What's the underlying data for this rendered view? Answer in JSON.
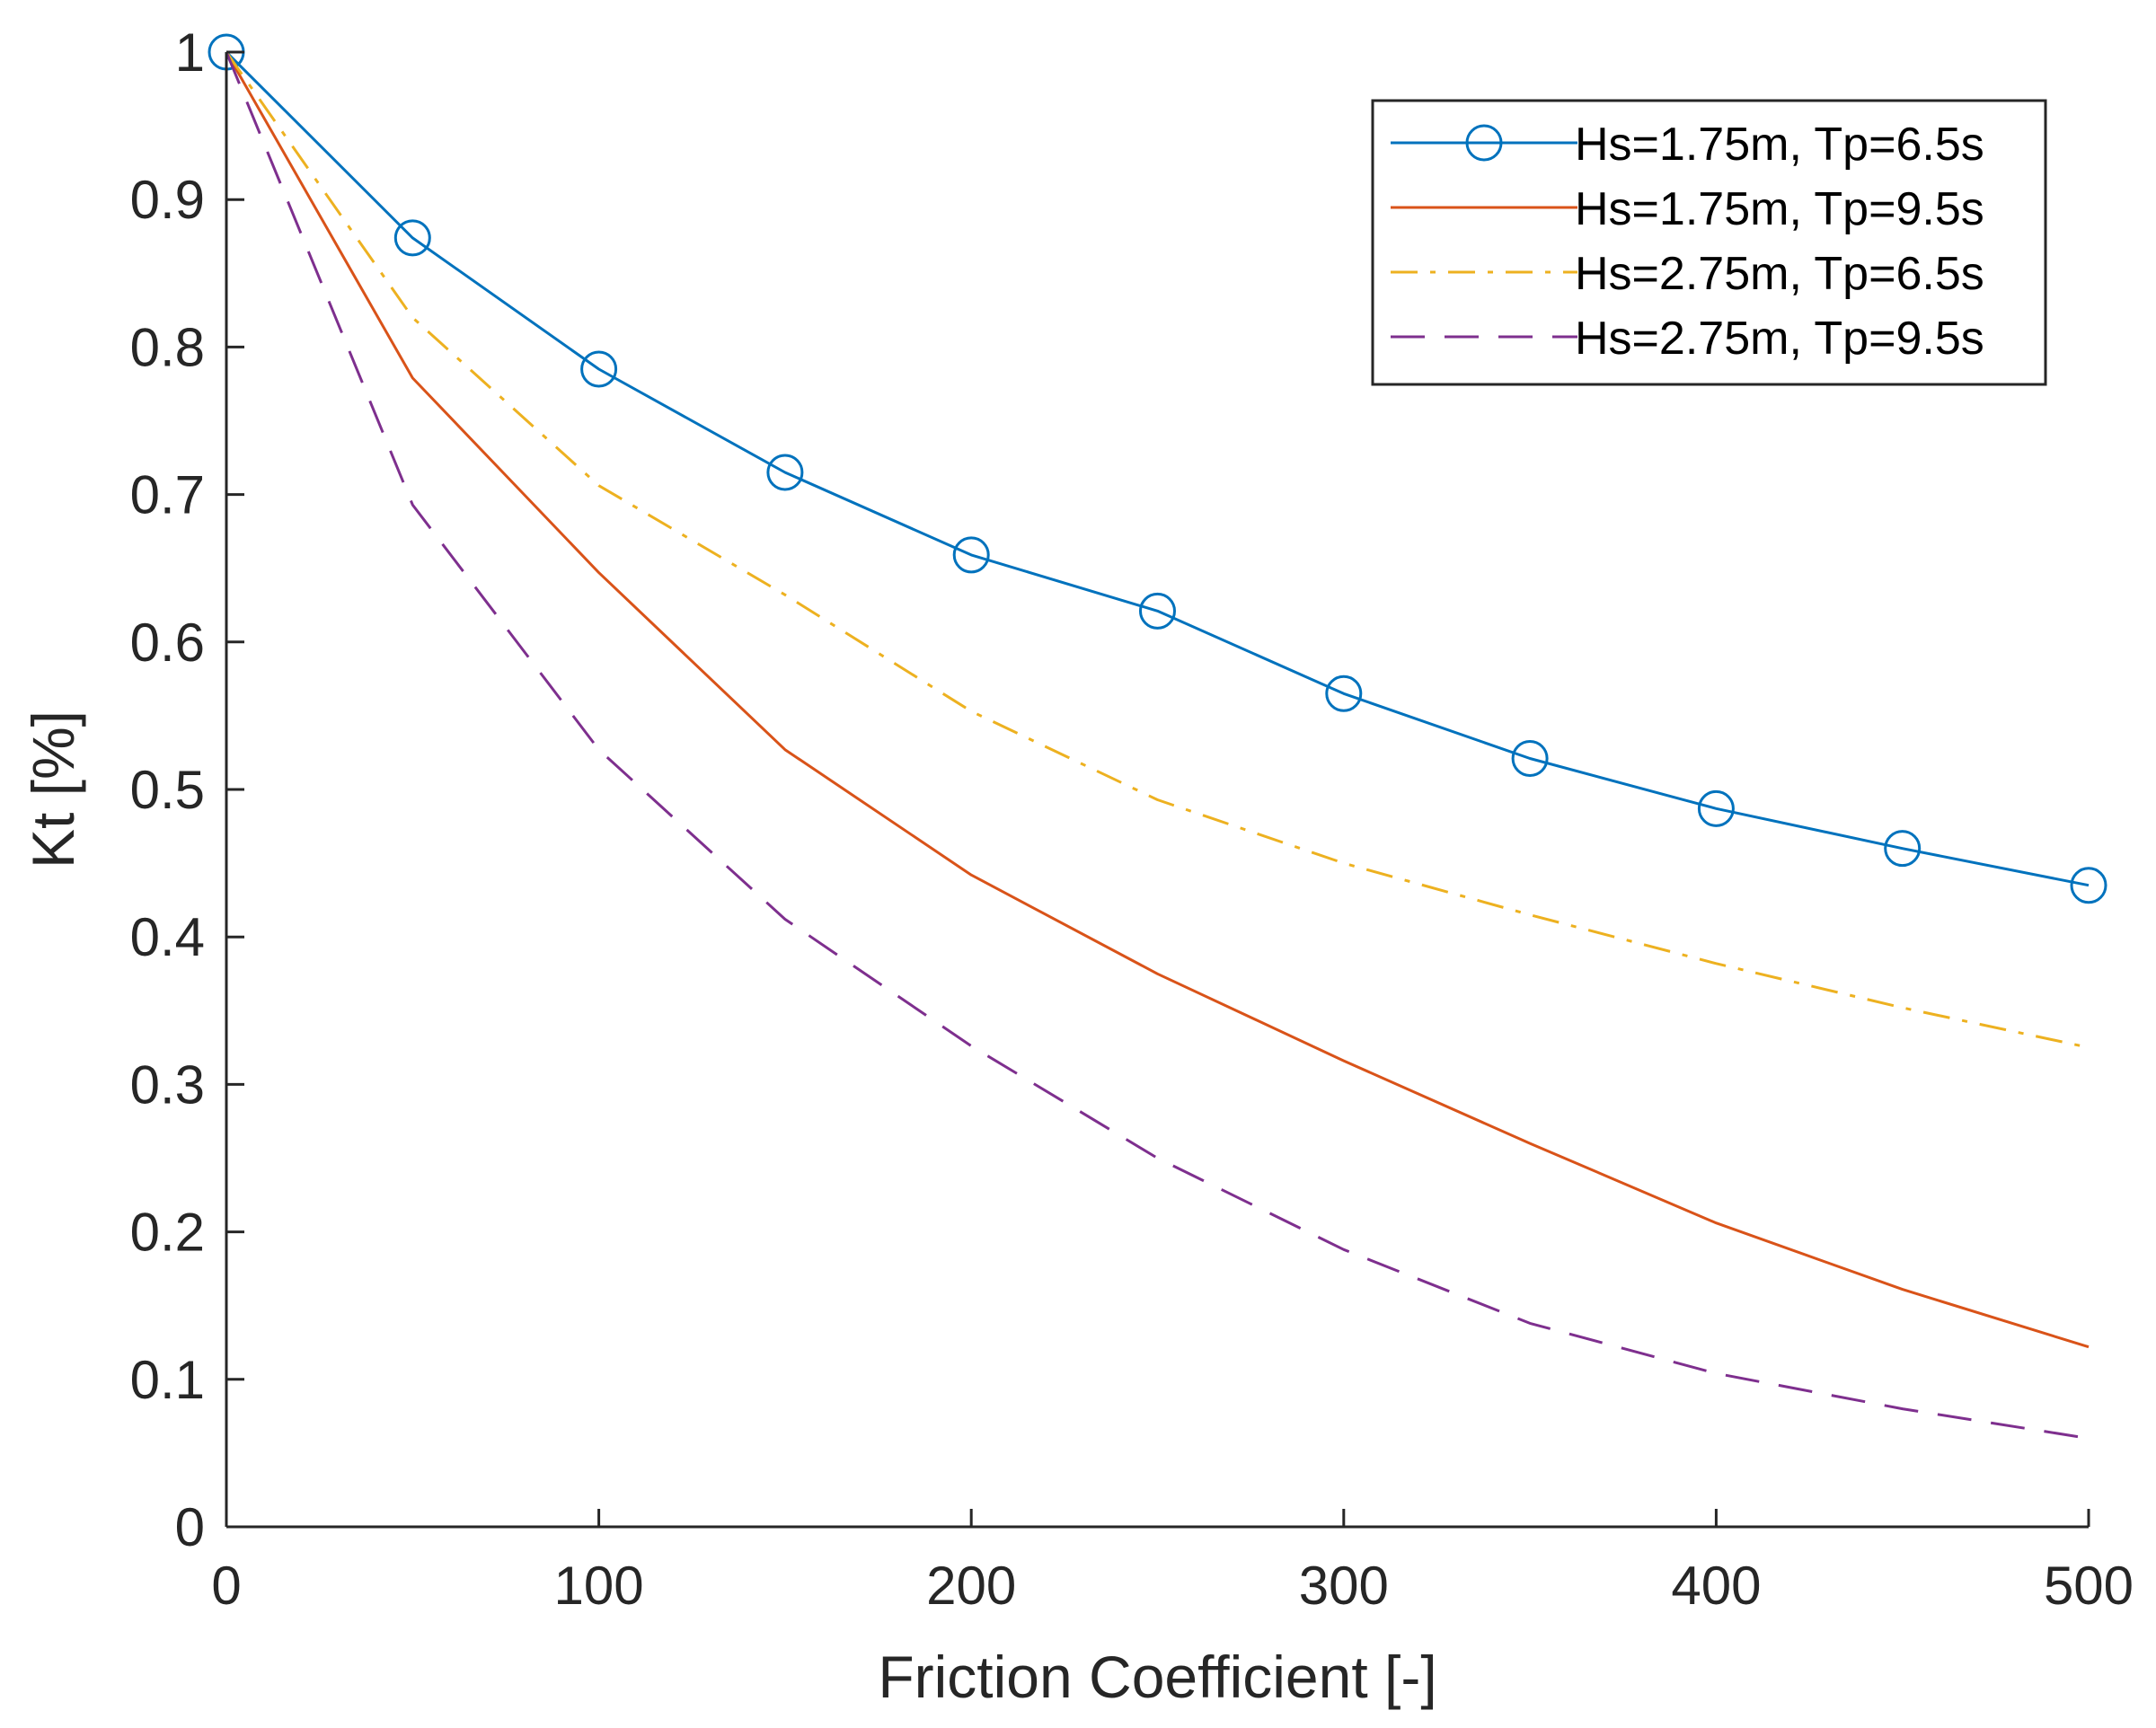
{
  "chart_data": {
    "type": "line",
    "title": "",
    "xlabel": "Friction Coefficient [-]",
    "ylabel": "Kt [%]",
    "xlim": [
      0,
      500
    ],
    "ylim": [
      0,
      1
    ],
    "xticks": [
      0,
      100,
      200,
      300,
      400,
      500
    ],
    "xtick_labels": [
      "0",
      "100",
      "200",
      "300",
      "400",
      "500"
    ],
    "yticks": [
      0,
      0.1,
      0.2,
      0.3,
      0.4,
      0.5,
      0.6,
      0.7,
      0.8,
      0.9,
      1
    ],
    "ytick_labels": [
      "0",
      "0.1",
      "0.2",
      "0.3",
      "0.4",
      "0.5",
      "0.6",
      "0.7",
      "0.8",
      "0.9",
      "1"
    ],
    "grid": false,
    "legend_position": "top-right",
    "x": [
      0,
      50,
      100,
      150,
      200,
      250,
      300,
      350,
      400,
      450,
      500
    ],
    "series": [
      {
        "name": "Hs=1.75m, Tp=6.5s",
        "color": "#0072BD",
        "line_style": "solid",
        "marker": "circle",
        "values": [
          1.0,
          0.874,
          0.785,
          0.715,
          0.659,
          0.621,
          0.565,
          0.521,
          0.487,
          0.46,
          0.435
        ]
      },
      {
        "name": "Hs=1.75m, Tp=9.5s",
        "color": "#D95319",
        "line_style": "solid",
        "marker": "none",
        "values": [
          1.0,
          0.779,
          0.647,
          0.527,
          0.442,
          0.375,
          0.316,
          0.26,
          0.206,
          0.161,
          0.122
        ]
      },
      {
        "name": "Hs=2.75m, Tp=6.5s",
        "color": "#EDB120",
        "line_style": "dashdot",
        "marker": "none",
        "values": [
          1.0,
          0.82,
          0.706,
          0.632,
          0.553,
          0.493,
          0.45,
          0.415,
          0.382,
          0.352,
          0.325
        ]
      },
      {
        "name": "Hs=2.75m, Tp=9.5s",
        "color": "#7E2F8E",
        "line_style": "dashed",
        "marker": "none",
        "values": [
          1.0,
          0.693,
          0.527,
          0.412,
          0.326,
          0.25,
          0.188,
          0.138,
          0.104,
          0.08,
          0.06
        ]
      }
    ]
  }
}
